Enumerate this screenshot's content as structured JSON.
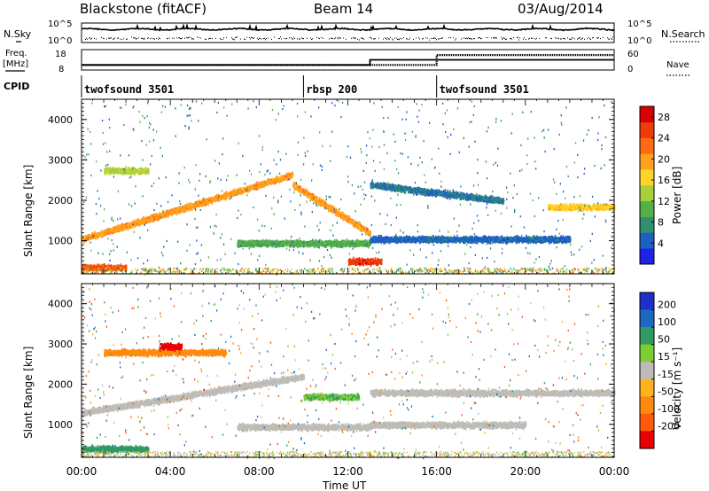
{
  "header": {
    "title": "Blackstone (fitACF)",
    "beam": "Beam 14",
    "date": "03/Aug/2014"
  },
  "colors": {
    "power_scale": [
      "#1e22e6",
      "#1e5fc4",
      "#2f8f6e",
      "#56b04a",
      "#a8cf3c",
      "#ffd42a",
      "#ffa21e",
      "#ff6a12",
      "#f03a0a",
      "#d80000"
    ],
    "velocity_scale": [
      "#1c2fc8",
      "#1e68c2",
      "#2f9a62",
      "#7ccf32",
      "#bdbcb6",
      "#ffb21e",
      "#ff8a10",
      "#ff5a0a",
      "#e80000"
    ],
    "ground_scatter": "#bdbcb6"
  },
  "chart_data": [
    {
      "type": "line",
      "panel": "noise",
      "labels": {
        "left": "N.Sky",
        "right": "N.Search"
      },
      "left_ticks": [
        "10^5",
        "10^0"
      ],
      "right_ticks": [
        "10^5",
        "10^0"
      ],
      "series": [
        {
          "name": "N.Sky",
          "style": "solid",
          "level": "high, near 10^4"
        },
        {
          "name": "N.Search",
          "style": "dotted",
          "level": "low, near 10^1"
        }
      ]
    },
    {
      "type": "line",
      "panel": "frequency",
      "labels": {
        "left_top": "Freq.",
        "left_bottom": "[MHz]",
        "right": "Nave"
      },
      "left_ticks": [
        "18",
        "8"
      ],
      "right_ticks": [
        "60",
        "0"
      ],
      "series": [
        {
          "name": "Freq.",
          "x_hours": [
            0,
            13,
            13,
            24
          ],
          "y_mhz": [
            10.5,
            10.5,
            13.0,
            13.0
          ]
        },
        {
          "name": "Nave",
          "x_hours": [
            0,
            16,
            16,
            24
          ],
          "y": [
            15,
            15,
            44,
            44
          ]
        }
      ]
    },
    {
      "type": "table",
      "panel": "cpid",
      "label": "CPID",
      "segments": [
        {
          "name": "twofsound 3501",
          "start_hour": 0,
          "end_hour": 10
        },
        {
          "name": "rbsp 200",
          "start_hour": 10,
          "end_hour": 16
        },
        {
          "name": "twofsound 3501",
          "start_hour": 16,
          "end_hour": 24
        }
      ]
    },
    {
      "type": "heatmap",
      "panel": "power",
      "ylabel": "Slant Range [km]",
      "colorbar_label": "Power [dB]",
      "colorbar_ticks": [
        "28",
        "24",
        "20",
        "16",
        "12",
        "8",
        "4"
      ],
      "colorbar_range": [
        0,
        30
      ],
      "yticks": [
        "4000",
        "3000",
        "2000",
        "1000"
      ],
      "ylim": [
        180,
        4500
      ],
      "features": [
        {
          "from_hour": 0.0,
          "to_hour": 9.5,
          "range_start_km": 1050,
          "range_end_km": 2650,
          "power_db": 20
        },
        {
          "from_hour": 1.0,
          "to_hour": 3.0,
          "range_km": 2750,
          "power_db": 14
        },
        {
          "from_hour": 9.5,
          "to_hour": 13.0,
          "range_start_km": 2400,
          "range_end_km": 1200,
          "power_db": 20
        },
        {
          "from_hour": 7.0,
          "to_hour": 13.0,
          "range_km": 950,
          "power_db": 10
        },
        {
          "from_hour": 12.0,
          "to_hour": 13.5,
          "range_km": 500,
          "power_db": 26
        },
        {
          "from_hour": 0.0,
          "to_hour": 2.0,
          "range_km": 350,
          "power_db": 24
        },
        {
          "from_hour": 13.0,
          "to_hour": 19.0,
          "range_start_km": 2400,
          "range_end_km": 2000,
          "power_db": 6
        },
        {
          "from_hour": 13.0,
          "to_hour": 22.0,
          "range_km": 1050,
          "power_db": 5
        },
        {
          "from_hour": 21.0,
          "to_hour": 24.0,
          "range_km": 1850,
          "power_db": 17
        }
      ]
    },
    {
      "type": "heatmap",
      "panel": "velocity",
      "ylabel": "Slant Range [km]",
      "xlabel": "Time UT",
      "colorbar_label": "Velocity [m s⁻¹]",
      "colorbar_ticks": [
        "200",
        "100",
        "50",
        "15",
        "-15",
        "-50",
        "-100",
        "-200"
      ],
      "colorbar_range": [
        -250,
        250
      ],
      "yticks": [
        "4000",
        "3000",
        "2000",
        "1000"
      ],
      "ylim": [
        180,
        4500
      ],
      "xticks": [
        "00:00",
        "04:00",
        "08:00",
        "12:00",
        "16:00",
        "20:00",
        "00:00"
      ],
      "xlim_hours": [
        0,
        24
      ],
      "features": [
        {
          "from_hour": 1.0,
          "to_hour": 6.5,
          "range_km": 2800,
          "velocity": -60
        },
        {
          "from_hour": 3.5,
          "to_hour": 4.5,
          "range_km": 2950,
          "velocity": -200
        },
        {
          "from_hour": 0.0,
          "to_hour": 10.0,
          "range_start_km": 1300,
          "range_end_km": 2200,
          "velocity": 0
        },
        {
          "from_hour": 10.0,
          "to_hour": 12.5,
          "range_km": 1700,
          "velocity": 30
        },
        {
          "from_hour": 7.0,
          "to_hour": 13.0,
          "range_km": 950,
          "velocity": 0
        },
        {
          "from_hour": 13.0,
          "to_hour": 24.0,
          "range_km": 1800,
          "velocity": 0
        },
        {
          "from_hour": 13.0,
          "to_hour": 20.0,
          "range_km": 1000,
          "velocity": 0
        },
        {
          "from_hour": 0.0,
          "to_hour": 3.0,
          "range_km": 400,
          "velocity": 40
        }
      ]
    }
  ]
}
